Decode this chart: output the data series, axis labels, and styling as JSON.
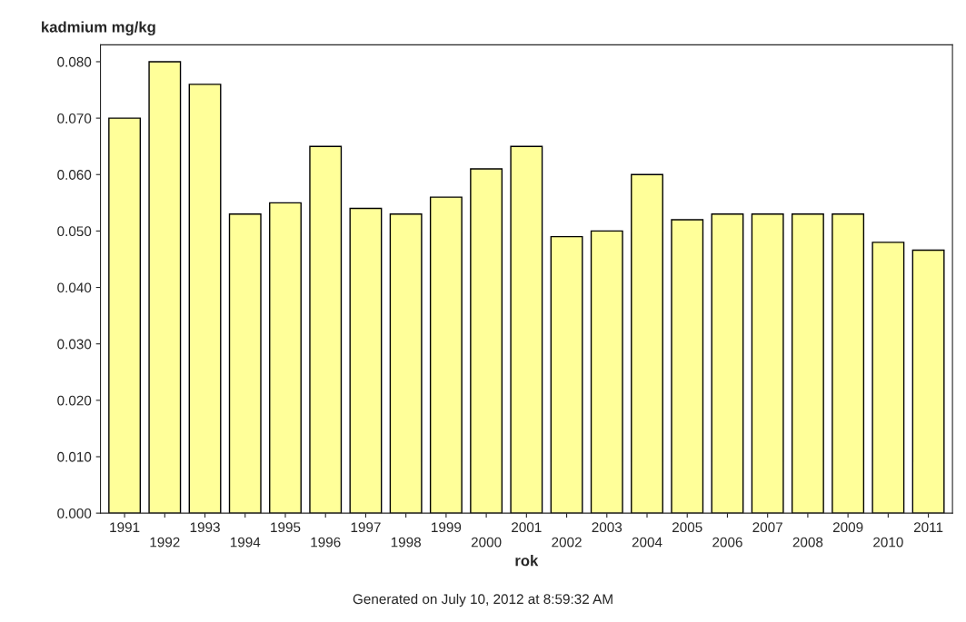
{
  "chart_data": {
    "type": "bar",
    "ylabel": "kadmium mg/kg",
    "xlabel": "rok",
    "categories": [
      "1991",
      "1992",
      "1993",
      "1994",
      "1995",
      "1996",
      "1997",
      "1998",
      "1999",
      "2000",
      "2001",
      "2002",
      "2003",
      "2004",
      "2005",
      "2006",
      "2007",
      "2008",
      "2009",
      "2010",
      "2011"
    ],
    "values": [
      0.07,
      0.08,
      0.076,
      0.053,
      0.055,
      0.065,
      0.054,
      0.053,
      0.056,
      0.061,
      0.065,
      0.049,
      0.05,
      0.06,
      0.052,
      0.053,
      0.053,
      0.053,
      0.053,
      0.048,
      0.0466
    ],
    "color": "#ffff99",
    "ylim": [
      0,
      0.083
    ],
    "yticks": [
      {
        "value": 0,
        "label": "0.000"
      },
      {
        "value": 0.01,
        "label": "0.010"
      },
      {
        "value": 0.02,
        "label": "0.020"
      },
      {
        "value": 0.03,
        "label": "0.030"
      },
      {
        "value": 0.04,
        "label": "0.040"
      },
      {
        "value": 0.05,
        "label": "0.050"
      },
      {
        "value": 0.06,
        "label": "0.060"
      },
      {
        "value": 0.07,
        "label": "0.070"
      },
      {
        "value": 0.08,
        "label": "0.080"
      }
    ],
    "grid": false,
    "annotations": [
      "Generated on July 10, 2012 at 8:59:32 AM"
    ]
  }
}
